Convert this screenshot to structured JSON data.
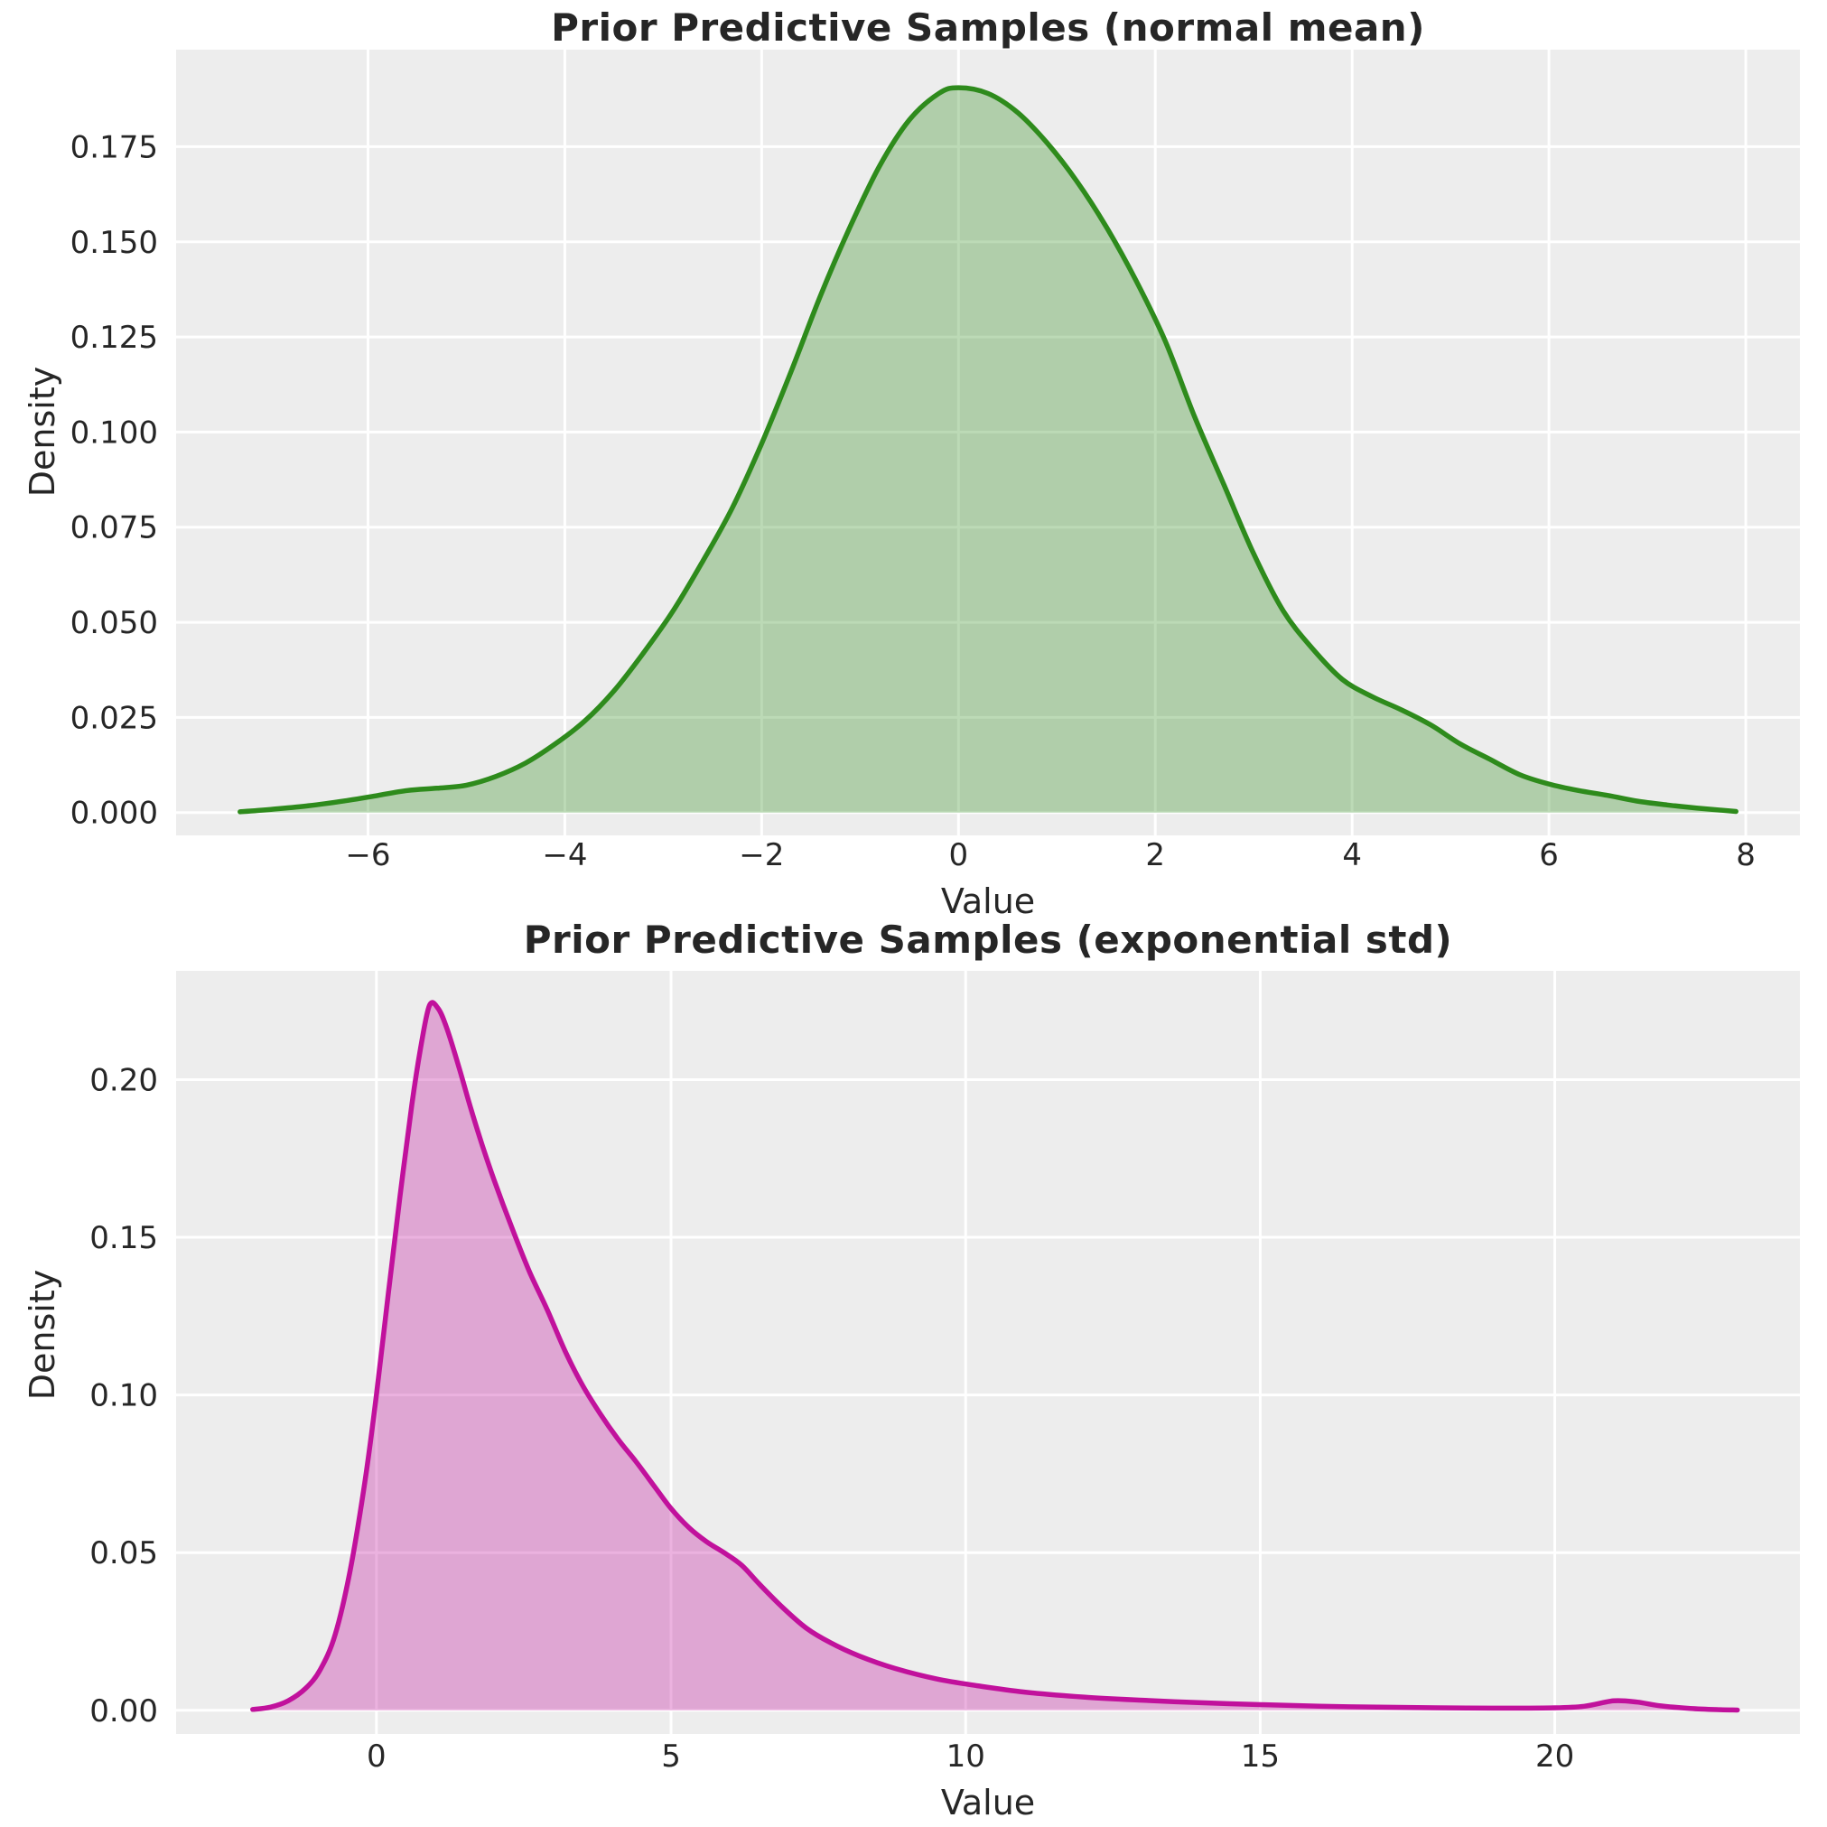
{
  "figure": {
    "background": "#ffffff",
    "plot_background": "#ededed",
    "grid_color": "#ffffff",
    "text_color": "#262626"
  },
  "chart_data": [
    {
      "type": "area",
      "kind": "kde-density",
      "title": "Prior Predictive Samples (normal mean)",
      "xlabel": "Value",
      "ylabel": "Density",
      "line_color": "#2e8b1c",
      "fill_opacity": 0.32,
      "grid": true,
      "xlim": [
        -7.95,
        8.55
      ],
      "ylim": [
        -0.006,
        0.2005
      ],
      "xticks": [
        {
          "v": -6,
          "label": "−6"
        },
        {
          "v": -4,
          "label": "−4"
        },
        {
          "v": -2,
          "label": "−2"
        },
        {
          "v": 0,
          "label": "0"
        },
        {
          "v": 2,
          "label": "2"
        },
        {
          "v": 4,
          "label": "4"
        },
        {
          "v": 6,
          "label": "6"
        },
        {
          "v": 8,
          "label": "8"
        }
      ],
      "yticks": [
        {
          "v": 0.0,
          "label": "0.000"
        },
        {
          "v": 0.025,
          "label": "0.025"
        },
        {
          "v": 0.05,
          "label": "0.050"
        },
        {
          "v": 0.075,
          "label": "0.075"
        },
        {
          "v": 0.1,
          "label": "0.100"
        },
        {
          "v": 0.125,
          "label": "0.125"
        },
        {
          "v": 0.15,
          "label": "0.150"
        },
        {
          "v": 0.175,
          "label": "0.175"
        }
      ],
      "series": [
        {
          "name": "kde of prior predictive samples (normal mean)",
          "x": [
            -7.3,
            -7.0,
            -6.6,
            -6.2,
            -5.9,
            -5.6,
            -5.3,
            -5.0,
            -4.7,
            -4.4,
            -4.1,
            -3.8,
            -3.5,
            -3.2,
            -2.9,
            -2.6,
            -2.3,
            -2.0,
            -1.7,
            -1.4,
            -1.1,
            -0.8,
            -0.5,
            -0.2,
            0.0,
            0.3,
            0.6,
            0.9,
            1.2,
            1.5,
            1.8,
            2.1,
            2.4,
            2.7,
            3.0,
            3.3,
            3.6,
            3.9,
            4.2,
            4.5,
            4.8,
            5.1,
            5.4,
            5.7,
            6.0,
            6.3,
            6.6,
            6.9,
            7.2,
            7.5,
            7.9
          ],
          "y": [
            0.0002,
            0.0008,
            0.0018,
            0.0032,
            0.0045,
            0.0058,
            0.0064,
            0.0072,
            0.0095,
            0.013,
            0.018,
            0.024,
            0.032,
            0.042,
            0.053,
            0.066,
            0.08,
            0.097,
            0.116,
            0.136,
            0.154,
            0.17,
            0.182,
            0.189,
            0.1905,
            0.189,
            0.184,
            0.176,
            0.166,
            0.154,
            0.14,
            0.124,
            0.104,
            0.086,
            0.068,
            0.053,
            0.043,
            0.035,
            0.0305,
            0.027,
            0.023,
            0.018,
            0.014,
            0.01,
            0.0075,
            0.0058,
            0.0045,
            0.003,
            0.002,
            0.0012,
            0.0003
          ]
        }
      ]
    },
    {
      "type": "area",
      "kind": "kde-density",
      "title": "Prior Predictive Samples (exponential std)",
      "xlabel": "Value",
      "ylabel": "Density",
      "line_color": "#c1119c",
      "fill_opacity": 0.32,
      "grid": true,
      "xlim": [
        -3.4,
        24.16
      ],
      "ylim": [
        -0.0075,
        0.2345
      ],
      "xticks": [
        {
          "v": 0,
          "label": "0"
        },
        {
          "v": 5,
          "label": "5"
        },
        {
          "v": 10,
          "label": "10"
        },
        {
          "v": 15,
          "label": "15"
        },
        {
          "v": 20,
          "label": "20"
        }
      ],
      "yticks": [
        {
          "v": 0.0,
          "label": "0.00"
        },
        {
          "v": 0.05,
          "label": "0.05"
        },
        {
          "v": 0.1,
          "label": "0.10"
        },
        {
          "v": 0.15,
          "label": "0.15"
        },
        {
          "v": 0.2,
          "label": "0.20"
        }
      ],
      "series": [
        {
          "name": "kde of prior predictive samples (exponential std)",
          "x": [
            -2.1,
            -1.8,
            -1.5,
            -1.2,
            -0.95,
            -0.7,
            -0.45,
            -0.2,
            0.0,
            0.2,
            0.4,
            0.6,
            0.75,
            0.9,
            1.05,
            1.2,
            1.4,
            1.6,
            1.8,
            2.0,
            2.3,
            2.6,
            2.9,
            3.2,
            3.5,
            3.8,
            4.1,
            4.4,
            4.7,
            5.0,
            5.3,
            5.6,
            5.9,
            6.2,
            6.5,
            6.9,
            7.3,
            7.7,
            8.2,
            8.8,
            9.5,
            10.2,
            11.0,
            12.0,
            13.0,
            14.0,
            15.0,
            16.0,
            17.0,
            18.0,
            19.0,
            20.0,
            20.5,
            21.0,
            21.4,
            21.8,
            22.3,
            22.8,
            23.1
          ],
          "y": [
            0.0003,
            0.001,
            0.003,
            0.007,
            0.013,
            0.024,
            0.044,
            0.072,
            0.1,
            0.132,
            0.163,
            0.192,
            0.21,
            0.2235,
            0.2225,
            0.216,
            0.204,
            0.191,
            0.179,
            0.168,
            0.153,
            0.139,
            0.127,
            0.114,
            0.103,
            0.094,
            0.086,
            0.079,
            0.0715,
            0.064,
            0.058,
            0.0535,
            0.05,
            0.046,
            0.04,
            0.0325,
            0.026,
            0.0215,
            0.0172,
            0.0133,
            0.01,
            0.0078,
            0.0058,
            0.0042,
            0.0032,
            0.0024,
            0.0018,
            0.0013,
            0.001,
            0.0008,
            0.0007,
            0.0008,
            0.0013,
            0.003,
            0.0026,
            0.0014,
            0.0006,
            0.0002,
            0.0001
          ]
        }
      ]
    }
  ]
}
